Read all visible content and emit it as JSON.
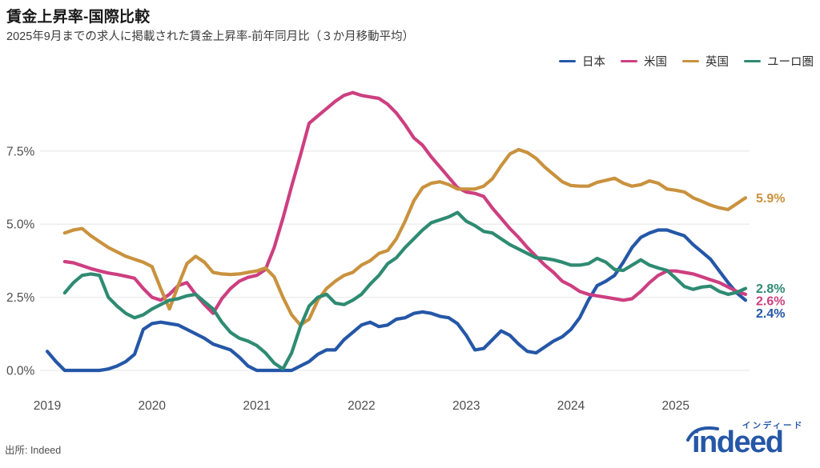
{
  "header": {
    "title": "賃金上昇率-国際比較",
    "subtitle": "2025年9月までの求人に掲載された賃金上昇率-前年同月比（３か月移動平均）"
  },
  "legend": [
    {
      "id": "japan",
      "label": "日本",
      "color": "#2557a7"
    },
    {
      "id": "us",
      "label": "米国",
      "color": "#cd3f81"
    },
    {
      "id": "uk",
      "label": "英国",
      "color": "#c9923e"
    },
    {
      "id": "eurozone",
      "label": "ユーロ圏",
      "color": "#2e8b72"
    }
  ],
  "source": "出所: Indeed",
  "logo": {
    "text": "indeed",
    "katakana": "インディード",
    "color": "#2557a7"
  },
  "colors": {
    "grid": "#ebebeb",
    "axis_text": "#4d4d4d",
    "title_text": "#191919"
  },
  "chart_data": {
    "type": "line",
    "title": "賃金上昇率-国際比較",
    "subtitle": "2025年9月までの求人に掲載された賃金上昇率-前年同月比（３か月移動平均）",
    "unit": "%",
    "x_range": {
      "start": "2019-01",
      "end": "2025-09"
    },
    "x_note": "values are monthly; month 0 = Jan 2019, month 80 = Sep 2025",
    "grid": "horizontal",
    "legend_position": "top-right",
    "ylim": [
      0,
      9.9
    ],
    "y_ticks": [
      {
        "label": "0.0%",
        "value": 0
      },
      {
        "label": "2.5%",
        "value": 2.5
      },
      {
        "label": "5.0%",
        "value": 5.0
      },
      {
        "label": "7.5%",
        "value": 7.5
      }
    ],
    "x_ticks": [
      {
        "label": "2019",
        "month": 0
      },
      {
        "label": "2020",
        "month": 12
      },
      {
        "label": "2021",
        "month": 24
      },
      {
        "label": "2022",
        "month": 36
      },
      {
        "label": "2023",
        "month": 48
      },
      {
        "label": "2024",
        "month": 60
      },
      {
        "label": "2025",
        "month": 72
      }
    ],
    "series": [
      {
        "id": "japan",
        "name": "日本",
        "color": "#2557a7",
        "start_month": 0,
        "end_label": "2.4%",
        "values": [
          0.65,
          0.3,
          0.0,
          0.0,
          0.0,
          0.0,
          0.0,
          0.05,
          0.15,
          0.3,
          0.55,
          1.4,
          1.6,
          1.65,
          1.6,
          1.55,
          1.4,
          1.25,
          1.1,
          0.9,
          0.8,
          0.7,
          0.45,
          0.15,
          0.0,
          0.0,
          0.0,
          0.0,
          0.0,
          0.15,
          0.3,
          0.55,
          0.7,
          0.7,
          1.05,
          1.3,
          1.55,
          1.65,
          1.5,
          1.55,
          1.75,
          1.8,
          1.95,
          2.0,
          1.95,
          1.85,
          1.8,
          1.6,
          1.2,
          0.7,
          0.75,
          1.05,
          1.35,
          1.2,
          0.9,
          0.65,
          0.6,
          0.8,
          1.0,
          1.15,
          1.4,
          1.8,
          2.4,
          2.9,
          3.05,
          3.25,
          3.7,
          4.2,
          4.55,
          4.7,
          4.8,
          4.8,
          4.7,
          4.6,
          4.3,
          4.05,
          3.8,
          3.4,
          3.0,
          2.65,
          2.4
        ]
      },
      {
        "id": "us",
        "name": "米国",
        "color": "#cd3f81",
        "start_month": 2,
        "end_label": "2.6%",
        "values": [
          3.72,
          3.68,
          3.58,
          3.48,
          3.4,
          3.33,
          3.28,
          3.22,
          3.15,
          2.8,
          2.5,
          2.4,
          2.6,
          2.9,
          3.0,
          2.6,
          2.25,
          1.95,
          2.45,
          2.8,
          3.05,
          3.18,
          3.25,
          3.45,
          4.2,
          5.2,
          6.3,
          7.35,
          8.45,
          8.7,
          8.95,
          9.2,
          9.4,
          9.5,
          9.4,
          9.35,
          9.3,
          9.1,
          8.8,
          8.4,
          7.95,
          7.7,
          7.3,
          6.95,
          6.6,
          6.25,
          6.1,
          6.05,
          5.95,
          5.55,
          5.2,
          4.85,
          4.55,
          4.2,
          3.9,
          3.6,
          3.35,
          3.05,
          2.9,
          2.7,
          2.6,
          2.55,
          2.5,
          2.45,
          2.4,
          2.45,
          2.7,
          3.0,
          3.25,
          3.4,
          3.4,
          3.35,
          3.3,
          3.2,
          3.1,
          3.0,
          2.85,
          2.7,
          2.6
        ]
      },
      {
        "id": "uk",
        "name": "英国",
        "color": "#c9923e",
        "start_month": 2,
        "end_label": "5.9%",
        "values": [
          4.7,
          4.8,
          4.85,
          4.6,
          4.4,
          4.2,
          4.05,
          3.9,
          3.8,
          3.7,
          3.55,
          2.8,
          2.1,
          2.9,
          3.65,
          3.9,
          3.7,
          3.35,
          3.3,
          3.28,
          3.3,
          3.35,
          3.4,
          3.5,
          3.2,
          2.5,
          1.9,
          1.55,
          1.75,
          2.4,
          2.8,
          3.05,
          3.25,
          3.35,
          3.6,
          3.75,
          4.0,
          4.1,
          4.5,
          5.1,
          5.8,
          6.25,
          6.4,
          6.45,
          6.35,
          6.2,
          6.2,
          6.2,
          6.3,
          6.55,
          7.0,
          7.4,
          7.55,
          7.45,
          7.25,
          6.95,
          6.7,
          6.45,
          6.32,
          6.3,
          6.3,
          6.43,
          6.5,
          6.57,
          6.4,
          6.3,
          6.35,
          6.48,
          6.4,
          6.2,
          6.16,
          6.1,
          5.9,
          5.78,
          5.65,
          5.56,
          5.5,
          5.7,
          5.9
        ]
      },
      {
        "id": "eurozone",
        "name": "ユーロ圏",
        "color": "#2e8b72",
        "start_month": 2,
        "end_label": "2.8%",
        "values": [
          2.65,
          3.0,
          3.25,
          3.3,
          3.25,
          2.5,
          2.2,
          1.95,
          1.8,
          1.9,
          2.1,
          2.25,
          2.4,
          2.45,
          2.55,
          2.6,
          2.35,
          2.1,
          1.65,
          1.3,
          1.1,
          1.0,
          0.85,
          0.6,
          0.25,
          0.05,
          0.6,
          1.5,
          2.2,
          2.5,
          2.6,
          2.3,
          2.25,
          2.4,
          2.6,
          2.95,
          3.25,
          3.65,
          3.85,
          4.2,
          4.5,
          4.8,
          5.05,
          5.15,
          5.25,
          5.4,
          5.1,
          4.95,
          4.75,
          4.7,
          4.5,
          4.3,
          4.15,
          4.0,
          3.85,
          3.83,
          3.78,
          3.7,
          3.6,
          3.6,
          3.65,
          3.83,
          3.7,
          3.45,
          3.42,
          3.6,
          3.78,
          3.6,
          3.5,
          3.42,
          3.15,
          2.87,
          2.77,
          2.85,
          2.88,
          2.7,
          2.6,
          2.67,
          2.8
        ]
      }
    ]
  }
}
